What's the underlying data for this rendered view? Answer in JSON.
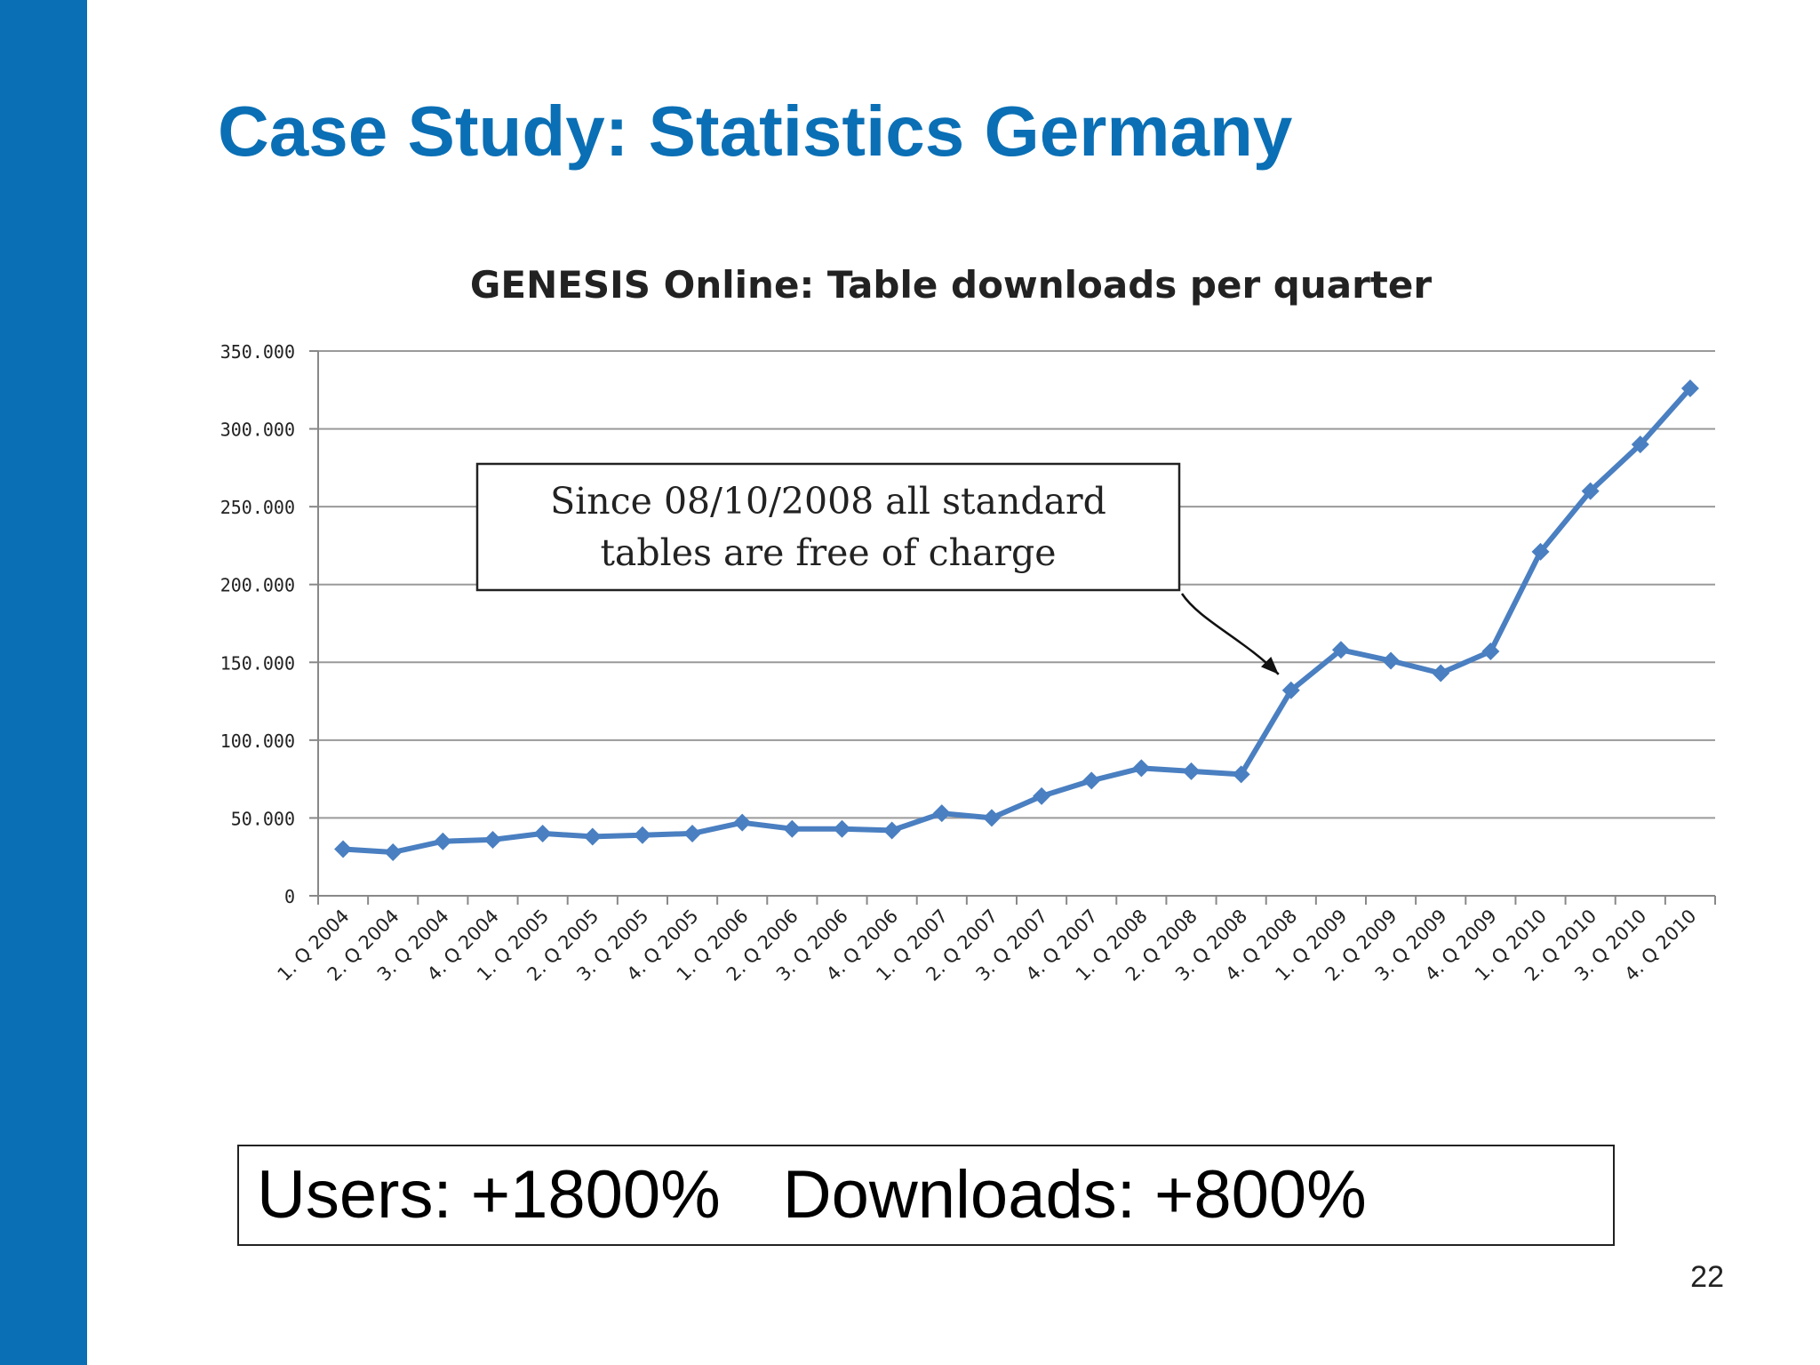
{
  "slide": {
    "title": "Case Study: Statistics Germany",
    "stats": {
      "users": "Users: +1800%",
      "downloads": "Downloads: +800%"
    },
    "page_number": "22",
    "accent_color": "#0a6fb5"
  },
  "chart_data": {
    "type": "line",
    "title": "GENESIS Online: Table downloads per quarter",
    "xlabel": "",
    "ylabel": "",
    "ylim": [
      0,
      350000
    ],
    "yticks": [
      0,
      50000,
      100000,
      150000,
      200000,
      250000,
      300000,
      350000
    ],
    "ytick_labels": [
      "0",
      "50.000",
      "100.000",
      "150.000",
      "200.000",
      "250.000",
      "300.000",
      "350.000"
    ],
    "categories": [
      "1. Q 2004",
      "2. Q 2004",
      "3. Q 2004",
      "4. Q 2004",
      "1. Q 2005",
      "2. Q 2005",
      "3. Q 2005",
      "4. Q 2005",
      "1. Q 2006",
      "2. Q 2006",
      "3. Q 2006",
      "4. Q 2006",
      "1. Q 2007",
      "2. Q 2007",
      "3. Q 2007",
      "4. Q 2007",
      "1. Q 2008",
      "2. Q 2008",
      "3. Q 2008",
      "4. Q 2008",
      "1. Q 2009",
      "2. Q 2009",
      "3. Q 2009",
      "4. Q 2009",
      "1. Q 2010",
      "2. Q 2010",
      "3. Q 2010",
      "4. Q 2010"
    ],
    "series": [
      {
        "values": [
          30000,
          28000,
          35000,
          36000,
          40000,
          38000,
          39000,
          40000,
          47000,
          43000,
          43000,
          42000,
          53000,
          50000,
          64000,
          74000,
          82000,
          80000,
          78000,
          132000,
          158000,
          151000,
          143000,
          157000,
          221000,
          260000,
          290000,
          326000
        ],
        "color": "#4a7fc1"
      }
    ],
    "grid": true,
    "legend": "none",
    "annotation": {
      "text_line1": "Since 08/10/2008 all standard",
      "text_line2": "tables are free of charge",
      "target_category": "4. Q 2008"
    }
  }
}
